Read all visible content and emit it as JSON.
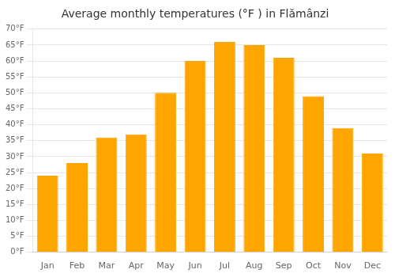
{
  "chart_data": {
    "type": "bar",
    "title": "Average monthly temperatures (°F ) in Flămânzi",
    "categories": [
      "Jan",
      "Feb",
      "Mar",
      "Apr",
      "May",
      "Jun",
      "Jul",
      "Aug",
      "Sep",
      "Oct",
      "Nov",
      "Dec"
    ],
    "values": [
      24,
      28,
      36,
      37,
      50,
      60,
      66,
      65,
      61,
      49,
      39,
      31
    ],
    "color": "#FFA500",
    "ylim": [
      0,
      70
    ],
    "yticks": [
      {
        "value": 0,
        "label": "0°F"
      },
      {
        "value": 5,
        "label": "5°F"
      },
      {
        "value": 10,
        "label": "10°F"
      },
      {
        "value": 15,
        "label": "15°F"
      },
      {
        "value": 20,
        "label": "20°F"
      },
      {
        "value": 25,
        "label": "25°F"
      },
      {
        "value": 30,
        "label": "30°F"
      },
      {
        "value": 35,
        "label": "35°F"
      },
      {
        "value": 40,
        "label": "40°F"
      },
      {
        "value": 45,
        "label": "45°F"
      },
      {
        "value": 50,
        "label": "50°F"
      },
      {
        "value": 55,
        "label": "55°F"
      },
      {
        "value": 60,
        "label": "60°F"
      },
      {
        "value": 65,
        "label": "65°F"
      },
      {
        "value": 70,
        "label": "70°F"
      }
    ],
    "grid": true
  }
}
